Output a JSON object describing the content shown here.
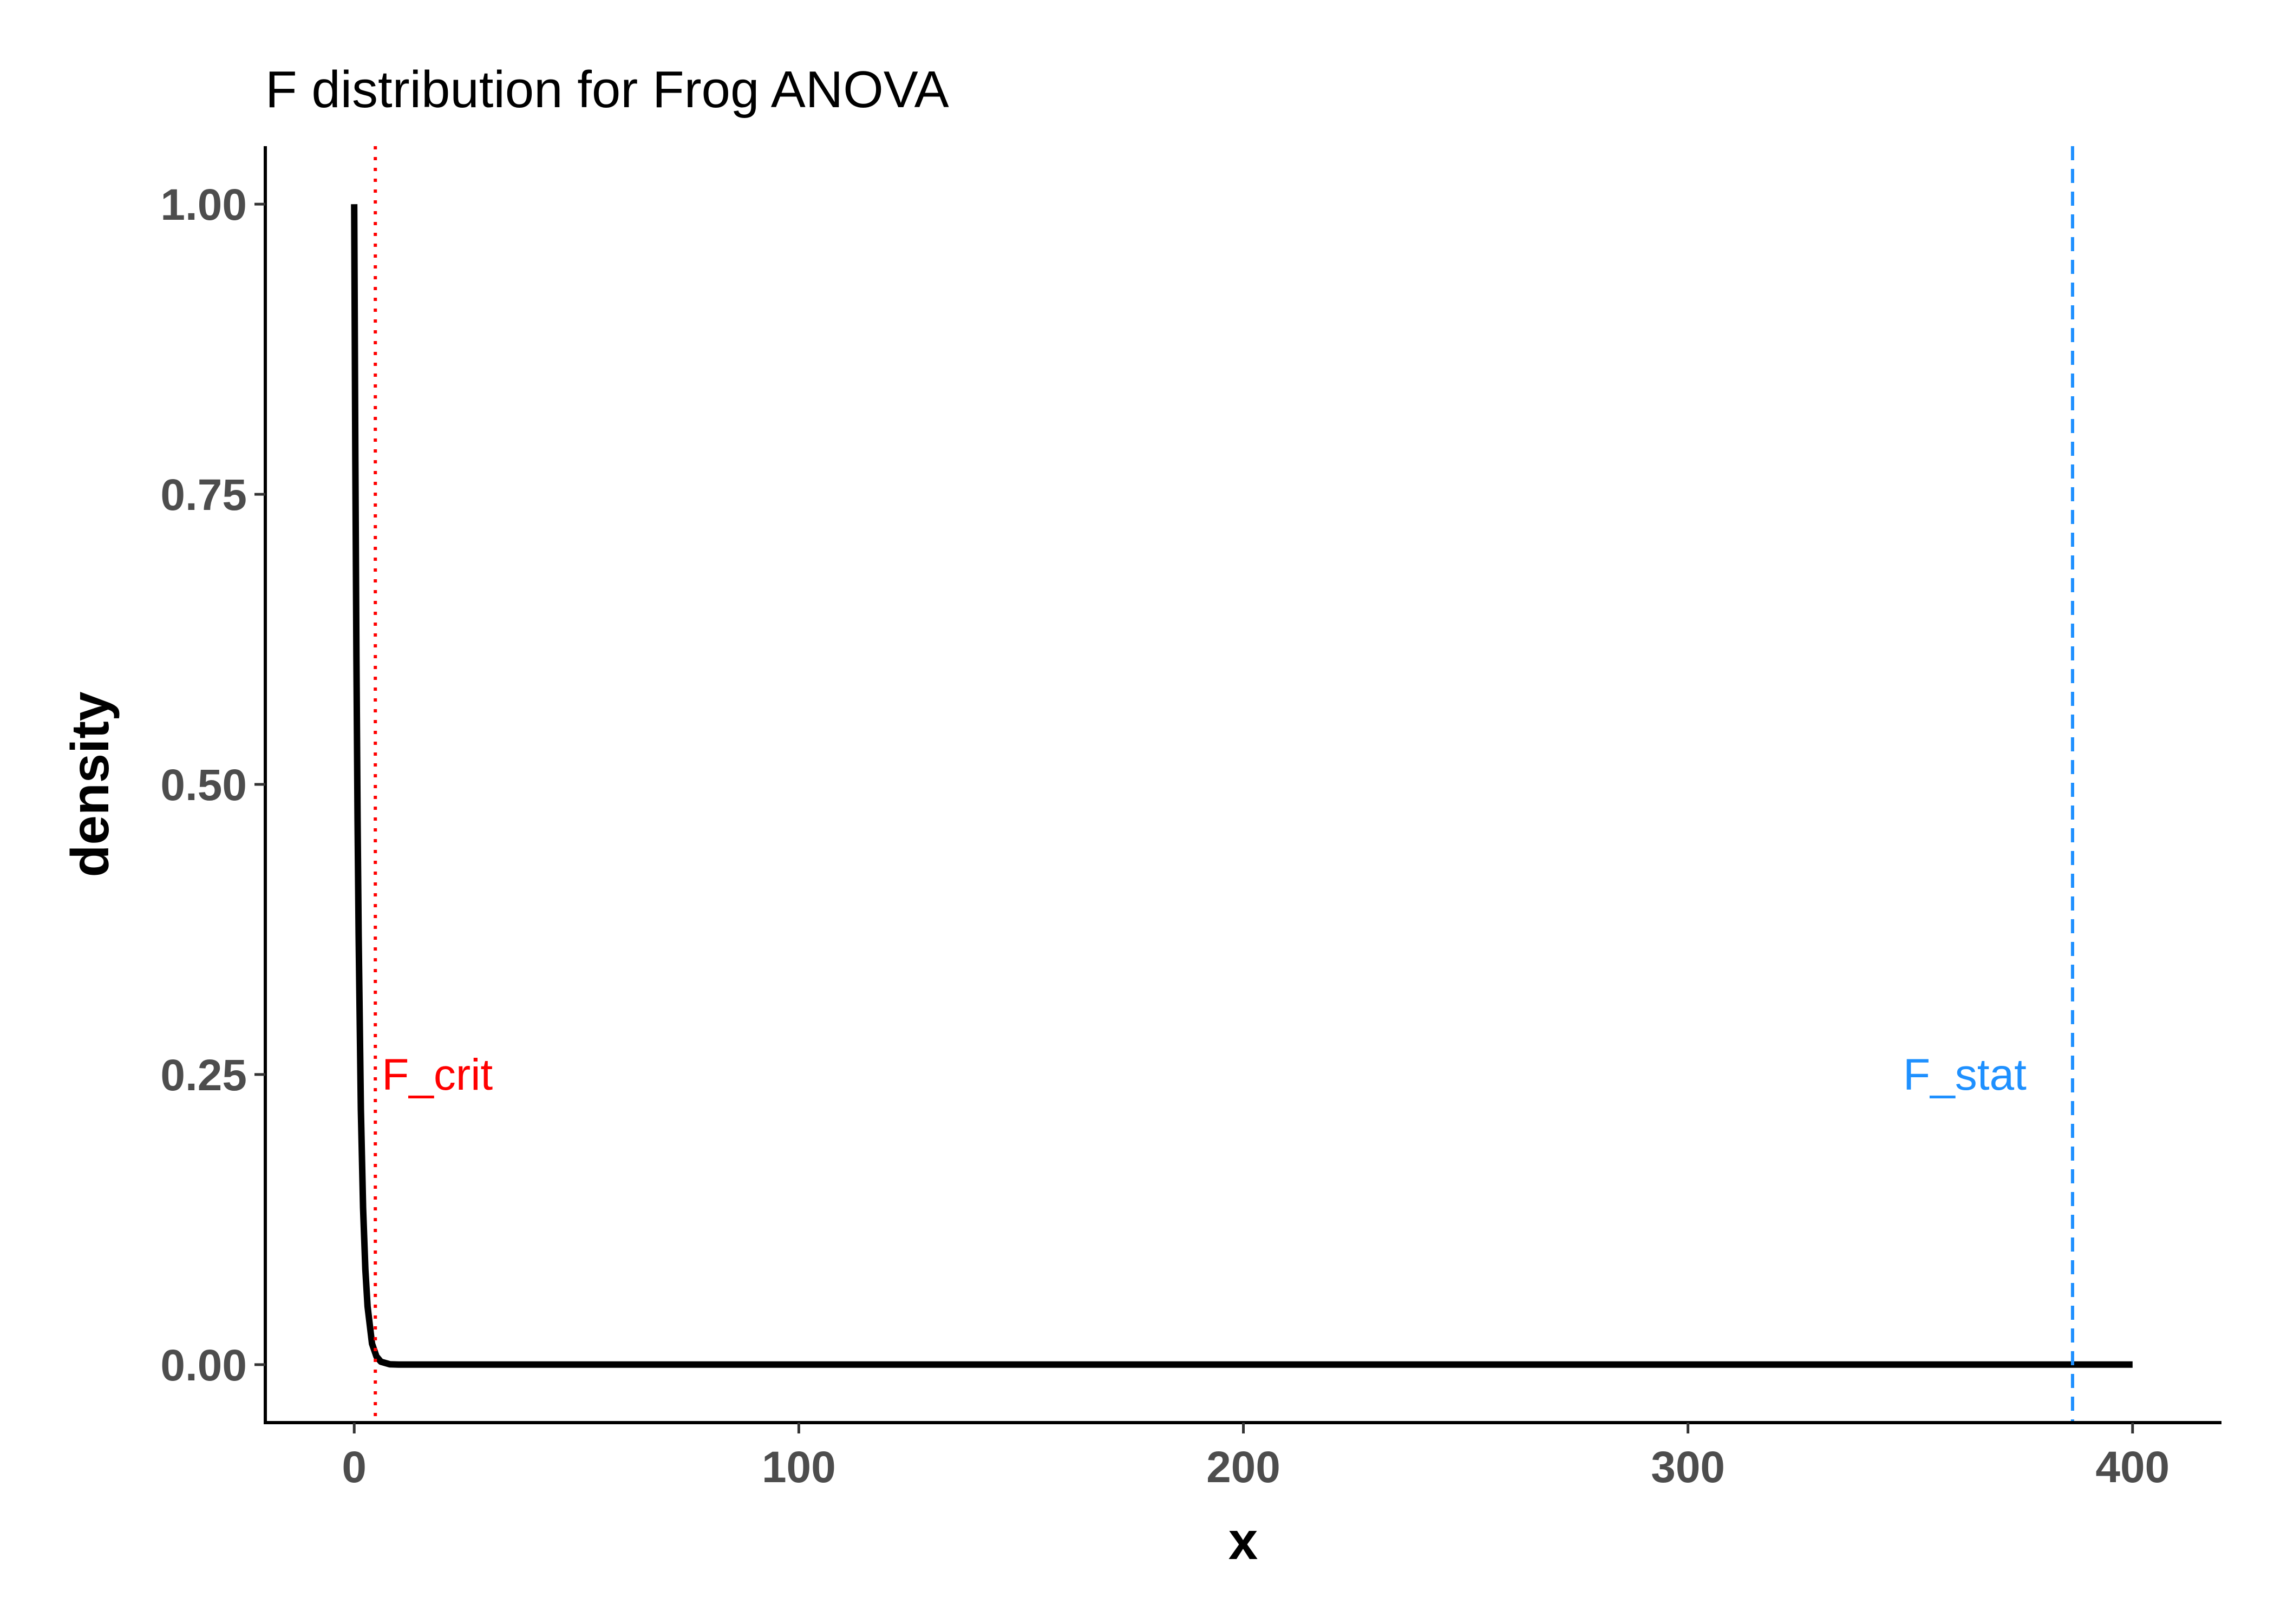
{
  "chart_data": {
    "type": "line",
    "title": "F distribution for Frog ANOVA",
    "xlabel": "x",
    "ylabel": "density",
    "xlim": [
      -20,
      420
    ],
    "ylim": [
      -0.05,
      1.05
    ],
    "x_ticks": [
      0,
      100,
      200,
      300,
      400
    ],
    "x_tick_labels": [
      "0",
      "100",
      "200",
      "300",
      "400"
    ],
    "y_ticks": [
      0,
      0.25,
      0.5,
      0.75,
      1
    ],
    "y_tick_labels": [
      "0.00",
      "0.25",
      "0.50",
      "0.75",
      "1.00"
    ],
    "grid": false,
    "colors": {
      "curve": "#000000",
      "f_crit": "#ff0000",
      "f_stat": "#1e90ff"
    },
    "series": [
      {
        "x": [
          0,
          0.25,
          0.5,
          0.75,
          1,
          1.5,
          2,
          2.5,
          3,
          4,
          5,
          6,
          8,
          10,
          15,
          20,
          50,
          100,
          200,
          300,
          400
        ],
        "y": [
          1.0,
          0.78,
          0.61,
          0.47,
          0.37,
          0.22,
          0.135,
          0.082,
          0.05,
          0.018,
          0.007,
          0.0025,
          0.0003,
          5e-05,
          0,
          0,
          0,
          0,
          0,
          0,
          0
        ]
      }
    ],
    "vlines": [
      {
        "x": 4.75,
        "label": "F_crit",
        "label_y": 0.25,
        "style": "dotted",
        "label_side": "right"
      },
      {
        "x": 386.5,
        "label": "F_stat",
        "label_y": 0.25,
        "style": "dashed",
        "label_side": "left"
      }
    ]
  }
}
